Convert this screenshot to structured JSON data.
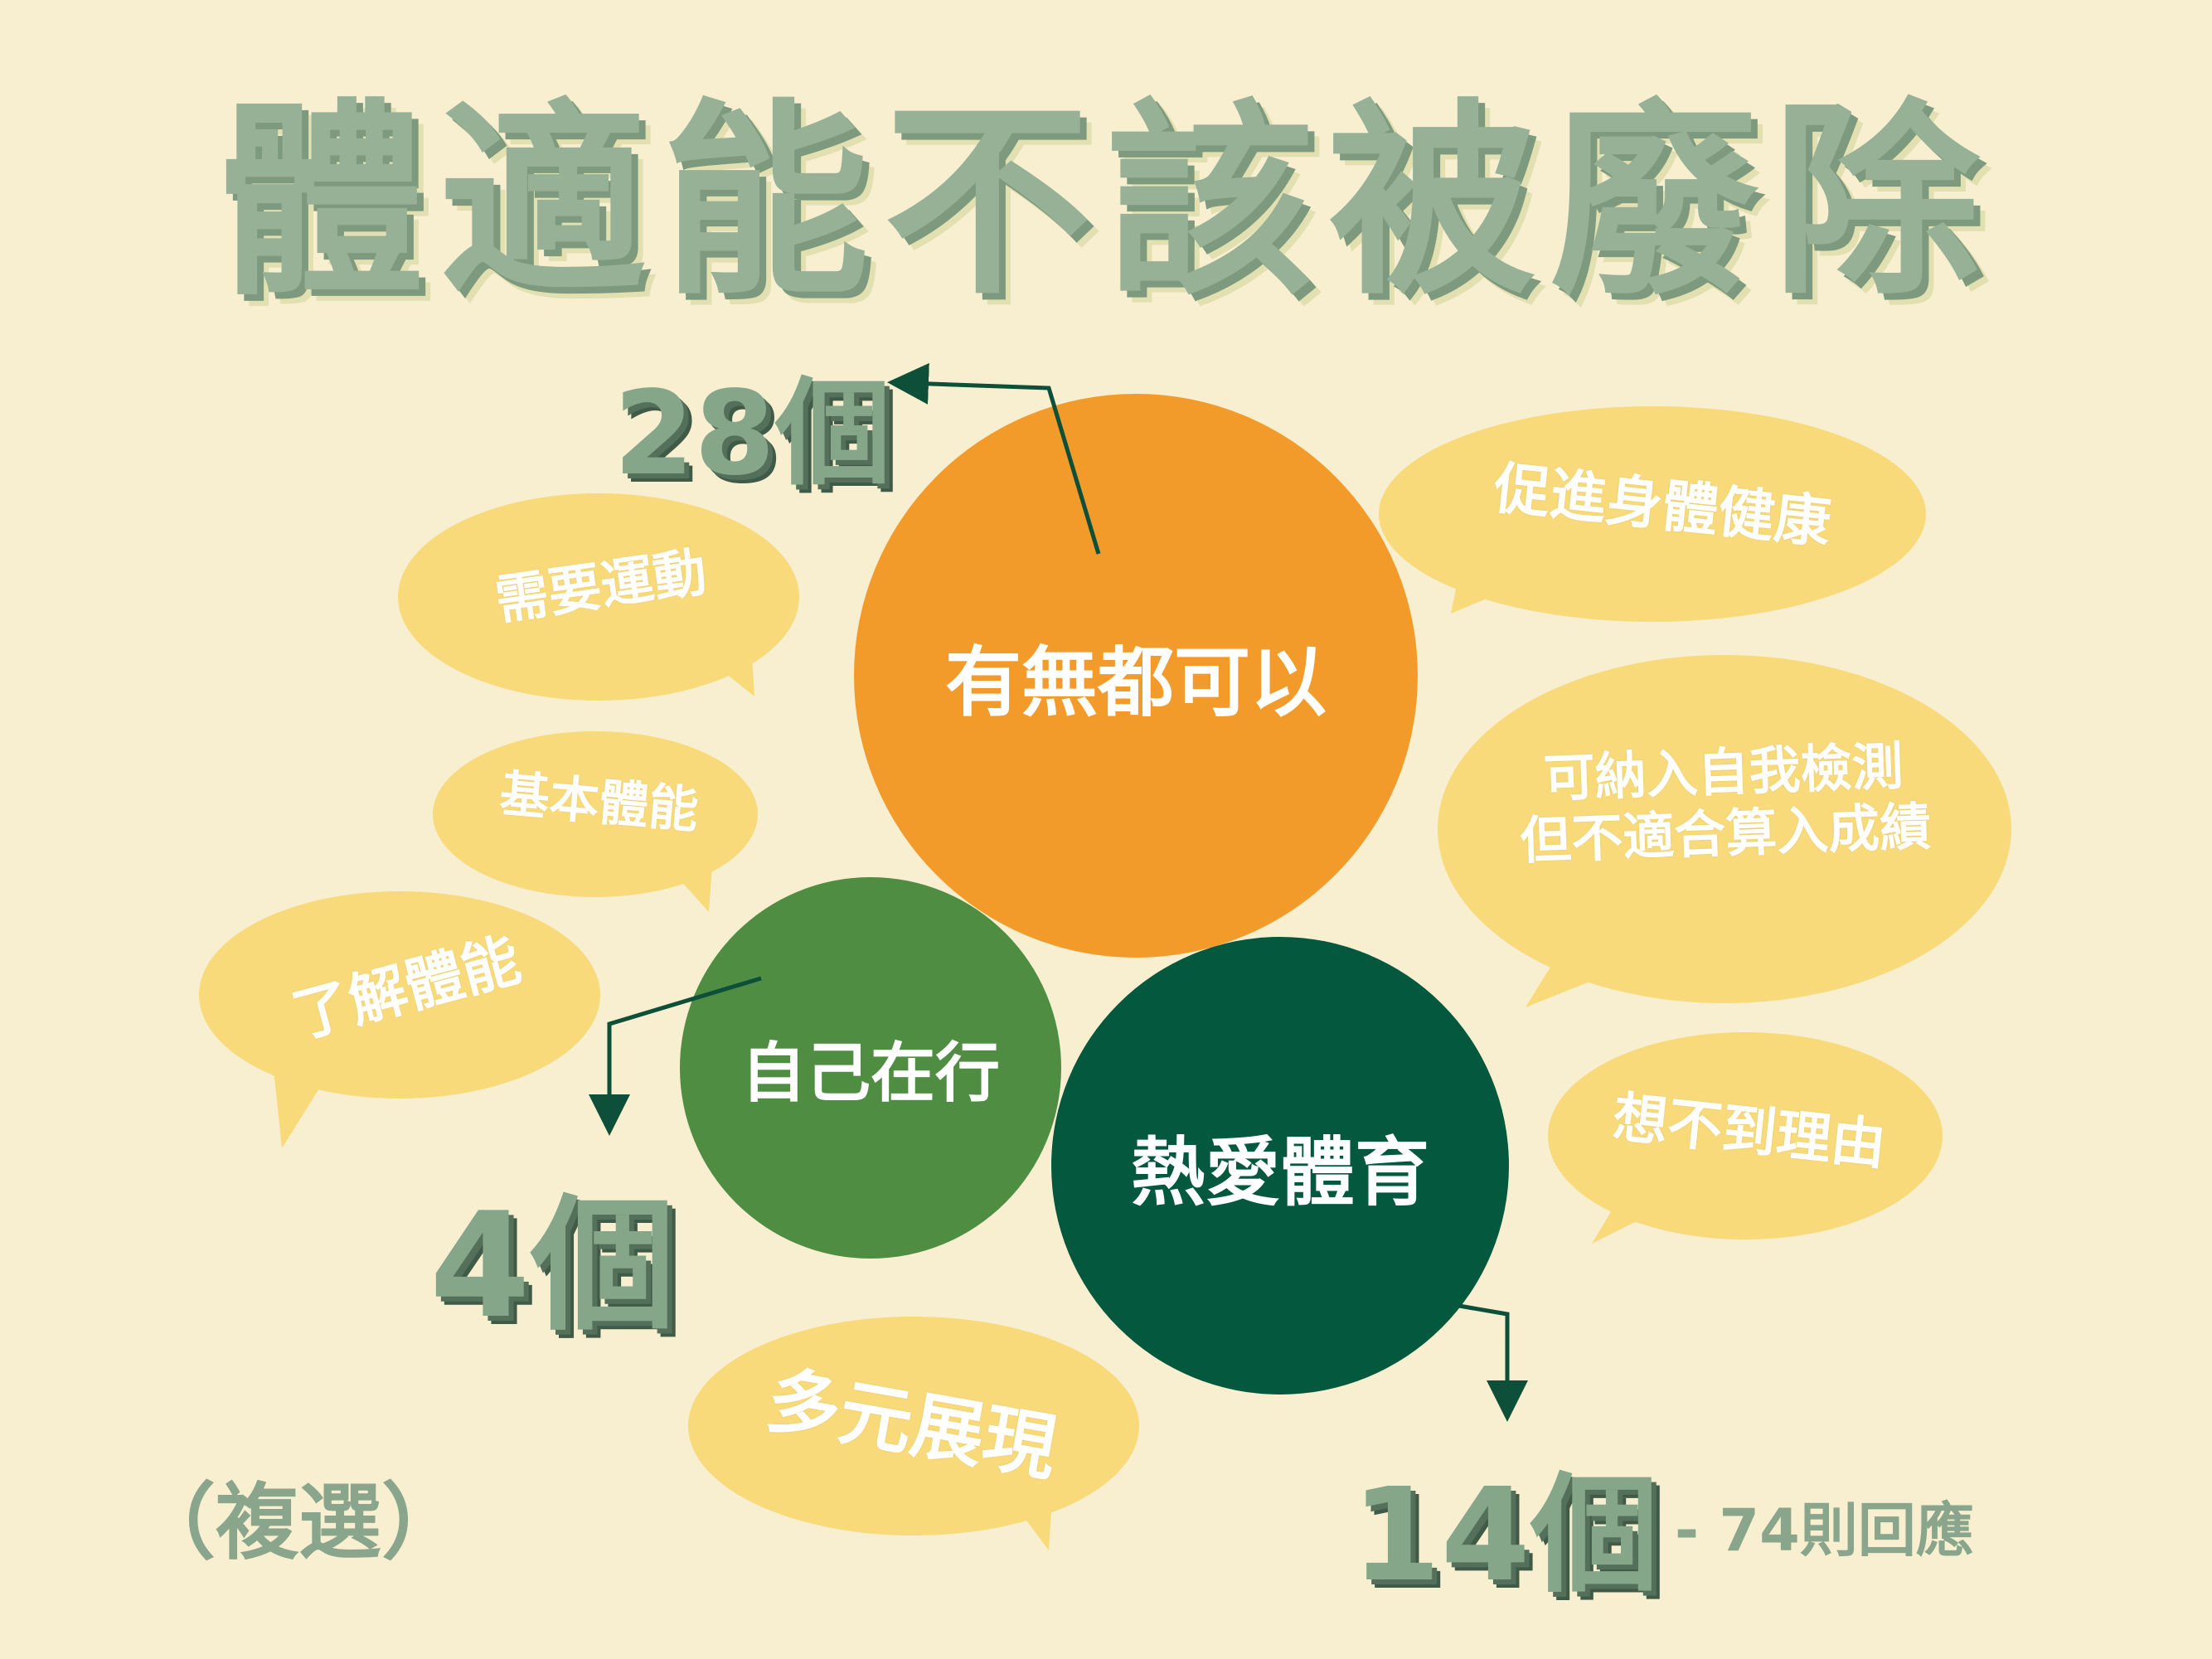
{
  "title": "體適能不該被廢除",
  "circles": {
    "either_ok": {
      "label": "有無都可以",
      "color": "#f29b2b"
    },
    "self_study": {
      "label": "自己在行",
      "color": "#4f8e42"
    },
    "love_pe": {
      "label": "熱愛體育",
      "color": "#03583e"
    }
  },
  "counts": {
    "either_ok": "28個",
    "self_study": "4個",
    "love_pe": "14個"
  },
  "bubbles": {
    "need_exercise": "需要運動",
    "basic_fitness": "基本體能",
    "know_fitness": "了解體能",
    "diverse": "多元展現",
    "promote_health": "促進身體健康",
    "self_check_line1": "可納入自我檢測",
    "self_check_line2": "但不適合算入成績",
    "no_reason": "想不到理由"
  },
  "notes": {
    "multiple_choice": "（複選）",
    "responses": "- 74則回應"
  },
  "colors": {
    "background": "#f8efd0",
    "bubble": "#f8da7a",
    "arrow": "#0d4f38",
    "title": "#97b196"
  }
}
